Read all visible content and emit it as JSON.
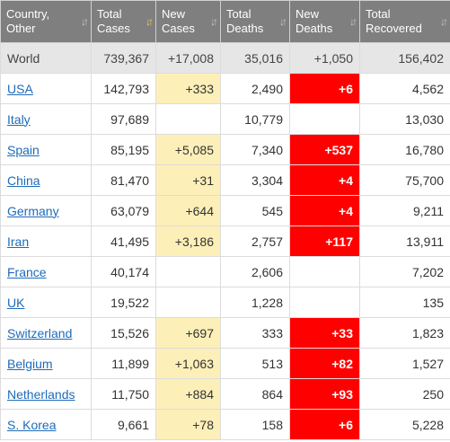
{
  "header": {
    "country": [
      "Country,",
      "Other"
    ],
    "total_cases": [
      "Total",
      "Cases"
    ],
    "new_cases": [
      "New",
      "Cases"
    ],
    "total_deaths": [
      "Total",
      "Deaths"
    ],
    "new_deaths": [
      "New",
      "Deaths"
    ],
    "total_recovered": [
      "Total",
      "Recovered"
    ]
  },
  "sort_icon": "sort-arrows-icon",
  "colors": {
    "header_bg": "#7f7f7f",
    "world_row_bg": "#e6e6e6",
    "new_cases_highlight": "#fdefb8",
    "new_deaths_highlight": "#ff0000",
    "link": "#1e6bb8"
  },
  "world": {
    "country": "World",
    "total_cases": "739,367",
    "new_cases": "+17,008",
    "total_deaths": "35,016",
    "new_deaths": "+1,050",
    "total_recovered": "156,402"
  },
  "rows": [
    {
      "country": "USA",
      "total_cases": "142,793",
      "new_cases": "+333",
      "total_deaths": "2,490",
      "new_deaths": "+6",
      "total_recovered": "4,562"
    },
    {
      "country": "Italy",
      "total_cases": "97,689",
      "new_cases": "",
      "total_deaths": "10,779",
      "new_deaths": "",
      "total_recovered": "13,030"
    },
    {
      "country": "Spain",
      "total_cases": "85,195",
      "new_cases": "+5,085",
      "total_deaths": "7,340",
      "new_deaths": "+537",
      "total_recovered": "16,780"
    },
    {
      "country": "China",
      "total_cases": "81,470",
      "new_cases": "+31",
      "total_deaths": "3,304",
      "new_deaths": "+4",
      "total_recovered": "75,700"
    },
    {
      "country": "Germany",
      "total_cases": "63,079",
      "new_cases": "+644",
      "total_deaths": "545",
      "new_deaths": "+4",
      "total_recovered": "9,211"
    },
    {
      "country": "Iran",
      "total_cases": "41,495",
      "new_cases": "+3,186",
      "total_deaths": "2,757",
      "new_deaths": "+117",
      "total_recovered": "13,911"
    },
    {
      "country": "France",
      "total_cases": "40,174",
      "new_cases": "",
      "total_deaths": "2,606",
      "new_deaths": "",
      "total_recovered": "7,202"
    },
    {
      "country": "UK",
      "total_cases": "19,522",
      "new_cases": "",
      "total_deaths": "1,228",
      "new_deaths": "",
      "total_recovered": "135"
    },
    {
      "country": "Switzerland",
      "total_cases": "15,526",
      "new_cases": "+697",
      "total_deaths": "333",
      "new_deaths": "+33",
      "total_recovered": "1,823"
    },
    {
      "country": "Belgium",
      "total_cases": "11,899",
      "new_cases": "+1,063",
      "total_deaths": "513",
      "new_deaths": "+82",
      "total_recovered": "1,527"
    },
    {
      "country": "Netherlands",
      "total_cases": "11,750",
      "new_cases": "+884",
      "total_deaths": "864",
      "new_deaths": "+93",
      "total_recovered": "250"
    },
    {
      "country": "S. Korea",
      "total_cases": "9,661",
      "new_cases": "+78",
      "total_deaths": "158",
      "new_deaths": "+6",
      "total_recovered": "5,228"
    }
  ]
}
